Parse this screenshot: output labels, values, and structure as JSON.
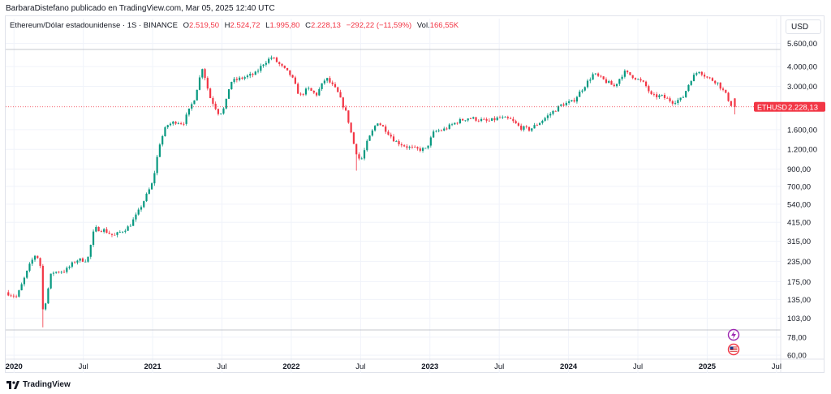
{
  "header": {
    "published": "BarbaraDistefano publicado en TradingView.com, Mar 05, 2025 12:40 UTC"
  },
  "legend": {
    "symbol": "Ethereum/Dólar estadounidense · 1S · BINANCE",
    "o_label": "O",
    "o_value": "2.519,50",
    "h_label": "H",
    "h_value": "2.524,72",
    "l_label": "L",
    "l_value": "1.995,80",
    "c_label": "C",
    "c_value": "2.228,13",
    "change": "−292,22 (−11,59%)",
    "vol_label": "Vol.",
    "vol_value": "166,55K"
  },
  "currency_button": "USD",
  "last_price": {
    "symbol": "ETHUSD",
    "value": "2.228,13",
    "numeric": 2228.13,
    "color": "#f23645"
  },
  "footer": {
    "brand": "TradingView"
  },
  "colors": {
    "up": "#089981",
    "down": "#f23645",
    "grid": "#f0f3fa",
    "axis_text": "#131722"
  },
  "icons": [
    "lightning-icon",
    "us-flag-icon"
  ],
  "chart_data": {
    "type": "candlestick",
    "title": "Ethereum/Dólar estadounidense · 1S · BINANCE",
    "scale": "log",
    "y_ticks": [
      {
        "value": 5600,
        "label": "5.600,00"
      },
      {
        "value": 4000,
        "label": "4.000,00"
      },
      {
        "value": 3000,
        "label": "3.000,00"
      },
      {
        "value": 1600,
        "label": "1.600,00"
      },
      {
        "value": 1200,
        "label": "1.200,00"
      },
      {
        "value": 900,
        "label": "900,00"
      },
      {
        "value": 700,
        "label": "700,00"
      },
      {
        "value": 540,
        "label": "540,00"
      },
      {
        "value": 415,
        "label": "415,00"
      },
      {
        "value": 315,
        "label": "315,00"
      },
      {
        "value": 235,
        "label": "235,00"
      },
      {
        "value": 175,
        "label": "175,00"
      },
      {
        "value": 135,
        "label": "135,00"
      },
      {
        "value": 103,
        "label": "103,00"
      },
      {
        "value": 78,
        "label": "78,00"
      },
      {
        "value": 60,
        "label": "60,00"
      }
    ],
    "ylim": [
      56,
      6200
    ],
    "x_ticks": [
      {
        "t": 2020.0,
        "label": "2020",
        "bold": true
      },
      {
        "t": 2020.5,
        "label": "Jul",
        "bold": false
      },
      {
        "t": 2021.0,
        "label": "2021",
        "bold": true
      },
      {
        "t": 2021.5,
        "label": "Jul",
        "bold": false
      },
      {
        "t": 2022.0,
        "label": "2022",
        "bold": true
      },
      {
        "t": 2022.5,
        "label": "Jul",
        "bold": false
      },
      {
        "t": 2023.0,
        "label": "2023",
        "bold": true
      },
      {
        "t": 2023.5,
        "label": "Jul",
        "bold": false
      },
      {
        "t": 2024.0,
        "label": "2024",
        "bold": true
      },
      {
        "t": 2024.5,
        "label": "Jul",
        "bold": false
      },
      {
        "t": 2025.0,
        "label": "2025",
        "bold": true
      },
      {
        "t": 2025.5,
        "label": "Jul",
        "bold": false
      }
    ],
    "xlim": [
      2019.94,
      2025.53
    ],
    "price_line": 2228.13,
    "anchors": [
      [
        2019.94,
        150
      ],
      [
        2020.02,
        140
      ],
      [
        2020.12,
        230
      ],
      [
        2020.16,
        265
      ],
      [
        2020.19,
        220
      ],
      [
        2020.21,
        110
      ],
      [
        2020.27,
        200
      ],
      [
        2020.37,
        205
      ],
      [
        2020.45,
        240
      ],
      [
        2020.53,
        240
      ],
      [
        2020.58,
        380
      ],
      [
        2020.65,
        370
      ],
      [
        2020.72,
        340
      ],
      [
        2020.83,
        390
      ],
      [
        2020.89,
        470
      ],
      [
        2020.95,
        600
      ],
      [
        2021.0,
        740
      ],
      [
        2021.05,
        1300
      ],
      [
        2021.1,
        1700
      ],
      [
        2021.17,
        1800
      ],
      [
        2021.22,
        1750
      ],
      [
        2021.3,
        2500
      ],
      [
        2021.36,
        4000
      ],
      [
        2021.41,
        2600
      ],
      [
        2021.48,
        2000
      ],
      [
        2021.52,
        2200
      ],
      [
        2021.56,
        3200
      ],
      [
        2021.65,
        3400
      ],
      [
        2021.74,
        3600
      ],
      [
        2021.8,
        4200
      ],
      [
        2021.86,
        4600
      ],
      [
        2021.93,
        4000
      ],
      [
        2022.0,
        3500
      ],
      [
        2022.06,
        2600
      ],
      [
        2022.12,
        2900
      ],
      [
        2022.18,
        2650
      ],
      [
        2022.25,
        3400
      ],
      [
        2022.33,
        2800
      ],
      [
        2022.4,
        2000
      ],
      [
        2022.46,
        1200
      ],
      [
        2022.5,
        1000
      ],
      [
        2022.55,
        1350
      ],
      [
        2022.62,
        1800
      ],
      [
        2022.68,
        1600
      ],
      [
        2022.75,
        1350
      ],
      [
        2022.83,
        1250
      ],
      [
        2022.9,
        1200
      ],
      [
        2022.97,
        1200
      ],
      [
        2023.03,
        1550
      ],
      [
        2023.1,
        1600
      ],
      [
        2023.2,
        1800
      ],
      [
        2023.28,
        1900
      ],
      [
        2023.35,
        1850
      ],
      [
        2023.42,
        1800
      ],
      [
        2023.5,
        1900
      ],
      [
        2023.58,
        1850
      ],
      [
        2023.65,
        1650
      ],
      [
        2023.72,
        1600
      ],
      [
        2023.8,
        1800
      ],
      [
        2023.88,
        2050
      ],
      [
        2023.95,
        2300
      ],
      [
        2024.03,
        2400
      ],
      [
        2024.1,
        2900
      ],
      [
        2024.18,
        3600
      ],
      [
        2024.25,
        3300
      ],
      [
        2024.33,
        3000
      ],
      [
        2024.4,
        3700
      ],
      [
        2024.47,
        3450
      ],
      [
        2024.55,
        3100
      ],
      [
        2024.6,
        2600
      ],
      [
        2024.67,
        2600
      ],
      [
        2024.75,
        2400
      ],
      [
        2024.82,
        2500
      ],
      [
        2024.88,
        3300
      ],
      [
        2024.94,
        3800
      ],
      [
        2025.0,
        3400
      ],
      [
        2025.07,
        3200
      ],
      [
        2025.13,
        2700
      ],
      [
        2025.18,
        2228
      ]
    ]
  }
}
